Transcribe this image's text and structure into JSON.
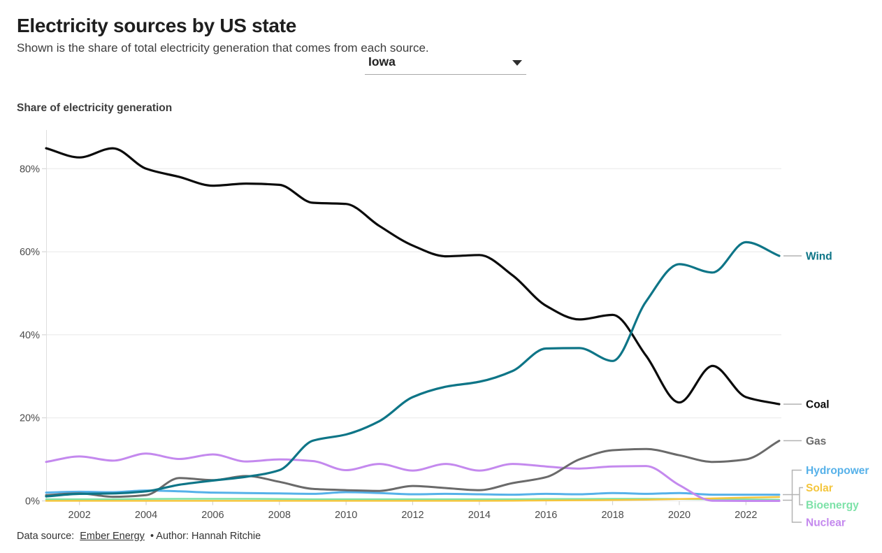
{
  "header": {
    "title": "Electricity sources by US state",
    "subtitle": "Shown is the share of total electricity generation that comes from each source.",
    "state_selector": {
      "value": "Iowa"
    }
  },
  "chart_heading": "Share of electricity generation",
  "footer": {
    "label": "Data source:",
    "source": "Ember Energy",
    "rest": "• Author: Hannah Ritchie"
  },
  "chart_data": {
    "type": "line",
    "title": "Share of electricity generation",
    "xlabel": "",
    "ylabel": "Share of electricity generation (%)",
    "grid": true,
    "legend_position": "right-edge-direct-labels",
    "xlim": [
      2001,
      2023
    ],
    "ylim": [
      0,
      88
    ],
    "x_ticks": [
      2002,
      2004,
      2006,
      2008,
      2010,
      2012,
      2014,
      2016,
      2018,
      2020,
      2022
    ],
    "y_ticks": [
      0,
      20,
      40,
      60,
      80
    ],
    "y_tick_suffix": "%",
    "x": [
      2001,
      2002,
      2003,
      2004,
      2005,
      2006,
      2007,
      2008,
      2009,
      2010,
      2011,
      2012,
      2013,
      2014,
      2015,
      2016,
      2017,
      2018,
      2019,
      2020,
      2021,
      2022,
      2023
    ],
    "series": [
      {
        "name": "Bioenergy",
        "color": "#7de2a8",
        "values": [
          0.4,
          0.4,
          0.4,
          0.45,
          0.5,
          0.5,
          0.5,
          0.45,
          0.4,
          0.4,
          0.4,
          0.4,
          0.4,
          0.4,
          0.4,
          0.45,
          0.45,
          0.5,
          0.5,
          0.45,
          0.4,
          0.35,
          0.3
        ]
      },
      {
        "name": "Solar",
        "color": "#f4c63d",
        "values": [
          0.02,
          0.02,
          0.02,
          0.02,
          0.02,
          0.02,
          0.02,
          0.02,
          0.02,
          0.02,
          0.02,
          0.02,
          0.02,
          0.02,
          0.05,
          0.1,
          0.15,
          0.2,
          0.3,
          0.45,
          0.6,
          0.8,
          0.95
        ]
      },
      {
        "name": "Hydropower",
        "color": "#56b1e9",
        "values": [
          2.0,
          2.2,
          2.1,
          2.5,
          2.3,
          2.0,
          1.9,
          1.8,
          1.7,
          2.1,
          1.9,
          1.6,
          1.7,
          1.6,
          1.5,
          1.7,
          1.6,
          1.9,
          1.7,
          1.9,
          1.5,
          1.5,
          1.5
        ]
      },
      {
        "name": "Nuclear",
        "color": "#c489ee",
        "values": [
          9.4,
          10.7,
          9.7,
          11.4,
          10.1,
          11.2,
          9.5,
          10.0,
          9.6,
          7.4,
          8.9,
          7.3,
          8.9,
          7.3,
          8.9,
          8.3,
          7.8,
          8.3,
          8.4,
          3.8,
          0.05,
          0.0,
          0.0
        ]
      },
      {
        "name": "Gas",
        "color": "#6a6a6a",
        "values": [
          1.4,
          1.8,
          1.0,
          1.4,
          5.5,
          5.0,
          6.0,
          4.6,
          2.9,
          2.6,
          2.4,
          3.6,
          3.1,
          2.6,
          4.3,
          5.7,
          10.0,
          12.2,
          12.5,
          11.0,
          9.4,
          10.0,
          14.5
        ]
      },
      {
        "name": "Coal",
        "color": "#0b0b0b",
        "values": [
          84.9,
          82.7,
          84.9,
          80.0,
          78.0,
          75.9,
          76.4,
          76.1,
          71.8,
          71.5,
          66.2,
          61.5,
          58.9,
          59.2,
          54.3,
          47.0,
          43.7,
          44.8,
          35.0,
          23.7,
          32.5,
          25.0,
          23.3
        ]
      },
      {
        "name": "Wind",
        "color": "#0e7587",
        "values": [
          1.1,
          1.7,
          1.8,
          2.3,
          3.9,
          4.9,
          5.8,
          7.4,
          14.5,
          16.0,
          19.2,
          25.0,
          27.5,
          28.7,
          31.3,
          36.7,
          36.8,
          33.7,
          48.0,
          57.0,
          55.0,
          62.3,
          59.0
        ]
      }
    ]
  }
}
